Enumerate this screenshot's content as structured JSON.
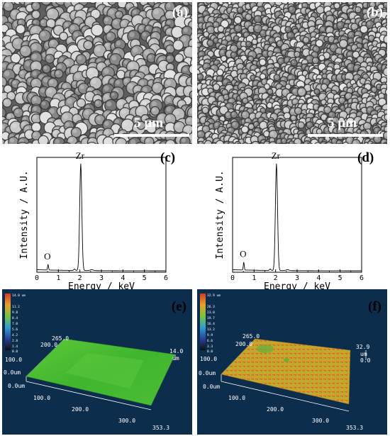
{
  "panels": {
    "a": {
      "label": "(a)",
      "scale_text": "5 µm"
    },
    "b": {
      "label": "(b)",
      "scale_text": "5 µm"
    },
    "c": {
      "label": "(c)"
    },
    "d": {
      "label": "(d)"
    },
    "e": {
      "label": "(e)"
    },
    "f": {
      "label": "(f)"
    }
  },
  "chart_data": [
    {
      "type": "line",
      "panel": "c",
      "xlabel": "Energy / keV",
      "ylabel": "Intensity / A.U.",
      "xlim": [
        0,
        6
      ],
      "x_ticks": [
        "0",
        "1",
        "2",
        "3",
        "4",
        "5",
        "6"
      ],
      "peaks": [
        {
          "label": "O",
          "energy": 0.52,
          "rel_intensity": 0.05
        },
        {
          "label": "Zr",
          "energy": 2.04,
          "rel_intensity": 0.93
        }
      ]
    },
    {
      "type": "line",
      "panel": "d",
      "xlabel": "Energy / keV",
      "ylabel": "Intensity / A.U.",
      "xlim": [
        0,
        6
      ],
      "x_ticks": [
        "0",
        "1",
        "2",
        "3",
        "4",
        "5",
        "6"
      ],
      "peaks": [
        {
          "label": "O",
          "energy": 0.52,
          "rel_intensity": 0.07
        },
        {
          "label": "Zr",
          "energy": 2.04,
          "rel_intensity": 0.93
        }
      ]
    }
  ],
  "topo_e": {
    "legend_ticks": [
      "14.0 um",
      "11.2",
      "9.8",
      "8.4",
      "7.0",
      "5.6",
      "4.2",
      "2.8",
      "1.4",
      "0.0"
    ],
    "z_top": "265.0",
    "z_200": "200.0",
    "z_100": "100.0",
    "zero_a": "0.0um",
    "zero_b": "0.0um",
    "x_100": "100.0",
    "x_200": "200.0",
    "x_300": "300.0",
    "x_end": "353.3",
    "height_value": "14.0",
    "height_unit": "um",
    "surface_color": "#3fb52e"
  },
  "topo_f": {
    "legend_ticks": [
      "32.9 um",
      "26.3",
      "23.0",
      "19.7",
      "16.4",
      "13.2",
      "9.9",
      "6.6",
      "3.3",
      "0.0"
    ],
    "z_top": "265.0",
    "z_200": "200.0",
    "z_100": "100.0",
    "zero_a": "0.0um",
    "zero_b": "0.0um",
    "x_100": "100.0",
    "x_200": "200.0",
    "x_300": "300.0",
    "x_end": "353.3",
    "height_value": "32.9",
    "height_unit": "um",
    "height_zero": "0.0",
    "surface_color": "#c9a52c"
  }
}
